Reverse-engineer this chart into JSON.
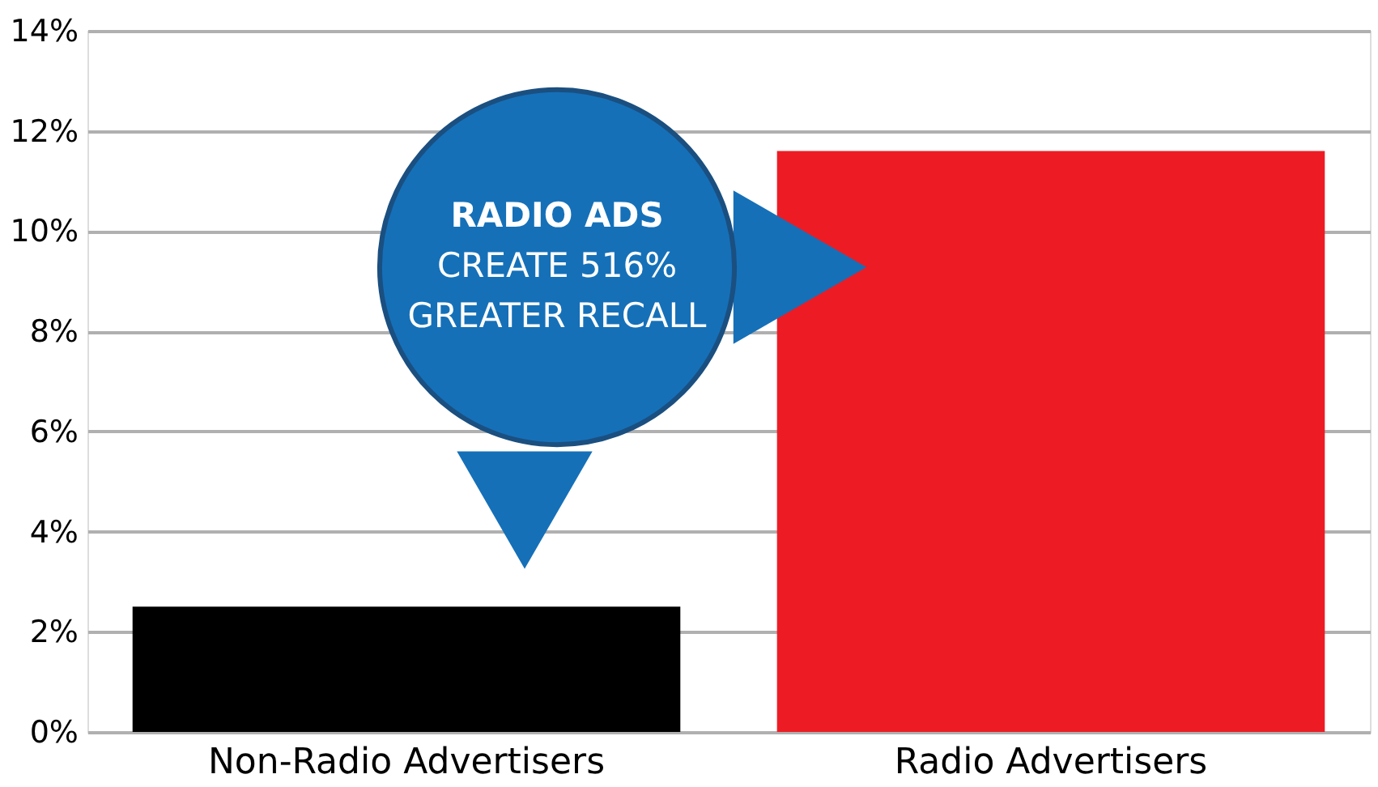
{
  "chart_data": {
    "type": "bar",
    "categories": [
      "Non-Radio Advertisers",
      "Radio Advertisers"
    ],
    "values": [
      2.5,
      11.6
    ],
    "colors": [
      "#000000",
      "#ed1c24"
    ],
    "ylim": [
      0,
      14
    ],
    "yticks": [
      {
        "value": 0,
        "label": "0%"
      },
      {
        "value": 2,
        "label": "2%"
      },
      {
        "value": 4,
        "label": "4%"
      },
      {
        "value": 6,
        "label": "6%"
      },
      {
        "value": 8,
        "label": "8%"
      },
      {
        "value": 10,
        "label": "10%"
      },
      {
        "value": 12,
        "label": "12%"
      },
      {
        "value": 14,
        "label": "14%"
      }
    ],
    "grid": "y",
    "annotations": [
      "RADIO ADS\nCREATE 516%\nGREATER RECALL"
    ]
  }
}
